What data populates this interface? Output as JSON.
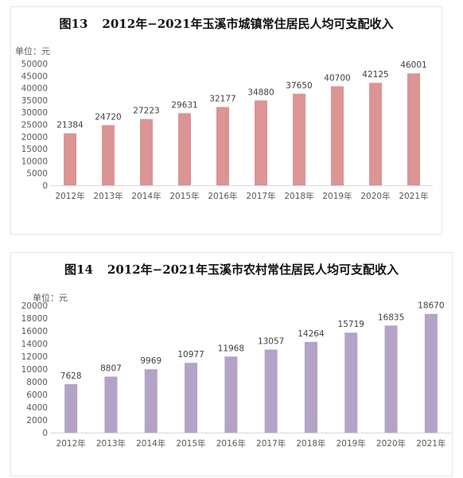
{
  "charts": [
    {
      "figure_number": "图13",
      "title": "2012年−2021年玉溪市城镇常住居民人均可支配收入",
      "unit_label": "单位：元",
      "color": "#dc9494"
    },
    {
      "figure_number": "图14",
      "title": "2012年−2021年玉溪市农村常住居民人均可支配收入",
      "unit_label": "单位：元",
      "color": "#b4a2c9"
    }
  ],
  "chart_data": [
    {
      "type": "bar",
      "title": "2012年−2021年玉溪市城镇常住居民人均可支配收入",
      "ylabel": "单位：元",
      "categories": [
        "2012年",
        "2013年",
        "2014年",
        "2015年",
        "2016年",
        "2017年",
        "2018年",
        "2019年",
        "2020年",
        "2021年"
      ],
      "values": [
        21384,
        24720,
        27223,
        29631,
        32177,
        34880,
        37650,
        40700,
        42125,
        46001
      ],
      "ylim": [
        0,
        50000
      ],
      "yticks": [
        0,
        5000,
        10000,
        15000,
        20000,
        25000,
        30000,
        35000,
        40000,
        45000,
        50000
      ],
      "grid": false,
      "legend": "none"
    },
    {
      "type": "bar",
      "title": "2012年−2021年玉溪市农村常住居民人均可支配收入",
      "ylabel": "单位：元",
      "categories": [
        "2012年",
        "2013年",
        "2014年",
        "2015年",
        "2016年",
        "2017年",
        "2018年",
        "2019年",
        "2020年",
        "2021年"
      ],
      "values": [
        7628,
        8807,
        9969,
        10977,
        11968,
        13057,
        14264,
        15719,
        16835,
        18670
      ],
      "ylim": [
        0,
        20000
      ],
      "yticks": [
        0,
        2000,
        4000,
        6000,
        8000,
        10000,
        12000,
        14000,
        16000,
        18000,
        20000
      ],
      "grid": false,
      "legend": "none"
    }
  ]
}
